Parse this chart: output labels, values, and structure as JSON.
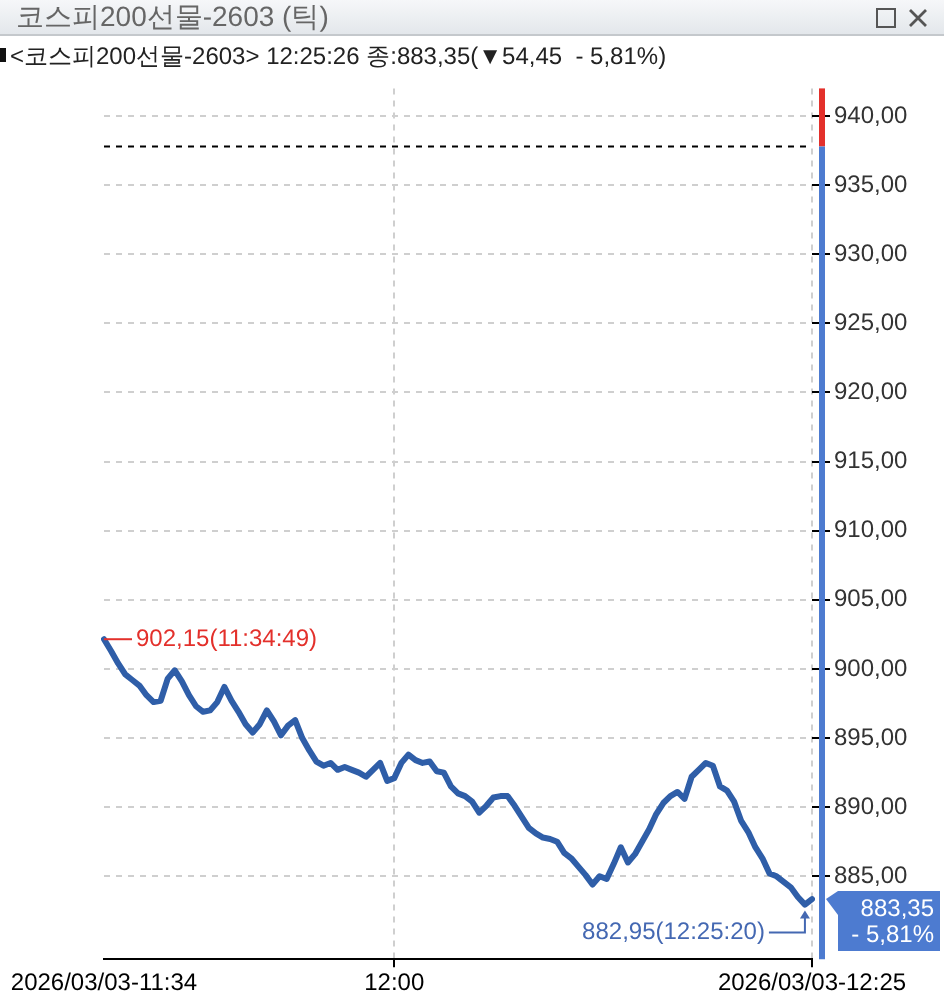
{
  "chart_data": {
    "type": "line",
    "title": "코스피200선물-2603 (틱)",
    "subtitle": "<코스피200선물-2603> 12:25:26 종:883,35(▼54,45  - 5,81%)",
    "categories": [
      "2026/03/03-11:34",
      null,
      null,
      null,
      null,
      null,
      null,
      null,
      null,
      null,
      null,
      null,
      null,
      null,
      null,
      null,
      null,
      null,
      null,
      null,
      null,
      null,
      null,
      null,
      null,
      null,
      null,
      null,
      null,
      null,
      null,
      null,
      null,
      null,
      null,
      null,
      null,
      null,
      null,
      null,
      null,
      "12:00",
      null,
      null,
      null,
      null,
      null,
      null,
      null,
      null,
      null,
      null,
      null,
      null,
      null,
      null,
      null,
      null,
      null,
      null,
      null,
      null,
      null,
      null,
      null,
      null,
      null,
      null,
      null,
      null,
      null,
      null,
      null,
      null,
      null,
      null,
      null,
      null,
      null,
      null,
      null,
      null,
      null,
      null,
      null,
      null,
      null,
      null,
      null,
      null,
      null,
      null,
      null,
      null,
      null,
      null,
      null,
      null,
      null,
      null,
      "2026/03/03-12:25"
    ],
    "series": [
      {
        "color": "#2f5ea8",
        "values": [
          902.15,
          901.3,
          900.4,
          899.6,
          899.2,
          898.8,
          898.1,
          897.6,
          897.7,
          899.3,
          899.9,
          899.1,
          898.1,
          897.3,
          896.9,
          897.0,
          897.6,
          898.7,
          897.7,
          896.9,
          896.0,
          895.4,
          896.0,
          897.0,
          896.2,
          895.2,
          895.9,
          896.3,
          895.0,
          894.1,
          893.3,
          893.0,
          893.2,
          892.7,
          892.9,
          892.7,
          892.5,
          892.2,
          892.7,
          893.2,
          891.9,
          892.1,
          893.2,
          893.8,
          893.4,
          893.2,
          893.3,
          892.6,
          892.5,
          891.5,
          891.0,
          890.8,
          890.4,
          889.6,
          890.1,
          890.7,
          890.8,
          890.8,
          890.1,
          889.3,
          888.5,
          888.1,
          887.8,
          887.7,
          887.5,
          886.7,
          886.3,
          885.7,
          885.1,
          884.4,
          885.0,
          884.8,
          885.9,
          887.1,
          886.0,
          886.6,
          887.5,
          888.4,
          889.5,
          890.3,
          890.8,
          891.1,
          890.6,
          892.2,
          892.7,
          893.2,
          893.0,
          891.5,
          891.2,
          890.4,
          889.0,
          888.2,
          887.1,
          886.3,
          885.2,
          885.0,
          884.6,
          884.2,
          883.5,
          882.95,
          883.35
        ]
      }
    ],
    "ylim": [
      879,
      942
    ],
    "yticks": [
      {
        "value": 885,
        "label": "885,00"
      },
      {
        "value": 890,
        "label": "890,00"
      },
      {
        "value": 895,
        "label": "895,00"
      },
      {
        "value": 900,
        "label": "900,00"
      },
      {
        "value": 905,
        "label": "905,00"
      },
      {
        "value": 910,
        "label": "910,00"
      },
      {
        "value": 915,
        "label": "915,00"
      },
      {
        "value": 920,
        "label": "920,00"
      },
      {
        "value": 925,
        "label": "925,00"
      },
      {
        "value": 930,
        "label": "930,00"
      },
      {
        "value": 935,
        "label": "935,00"
      },
      {
        "value": 940,
        "label": "940,00"
      }
    ],
    "grid": true,
    "ref_lines": [
      {
        "axis": "y",
        "value": 937.8,
        "color": "#000000",
        "line_style": "dashed"
      }
    ],
    "annotations": [
      {
        "text": "902,15(11:34:49)",
        "x": "2026/03/03-11:34",
        "y": 902.15
      },
      "882,95(12:25:20)",
      {
        "text": "883,35",
        "x": "2026/03/03-12:25",
        "y": 883.35
      },
      "- 5,81%"
    ]
  }
}
